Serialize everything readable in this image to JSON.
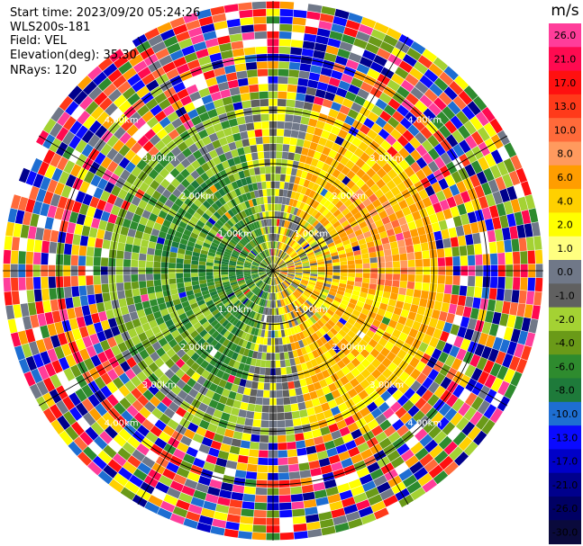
{
  "header": {
    "start_time": "Start time: 2023/09/20 05:24:26",
    "instrument": "WLS200s-181",
    "field": "Field: VEL",
    "elevation": "Elevation(deg): 35.30",
    "nrays": "NRays: 120"
  },
  "rings": {
    "labels": [
      "1.00km",
      "2.00km",
      "3.00km",
      "4.00km"
    ],
    "label_bearings_deg": [
      45,
      135,
      225,
      315
    ]
  },
  "colorbar": {
    "unit": "m/s",
    "ticks": [
      "26.0",
      "21.0",
      "17.0",
      "13.0",
      "10.0",
      "8.0",
      "6.0",
      "4.0",
      "2.0",
      "1.0",
      "0.0",
      "-1.0",
      "-2.0",
      "-4.0",
      "-6.0",
      "-8.0",
      "-10.0",
      "-13.0",
      "-17.0",
      "-21.0",
      "-26.0",
      "-30.0"
    ],
    "colors": [
      "#ff3d9a",
      "#ff0a50",
      "#ff1010",
      "#ff3a1a",
      "#ff6a3a",
      "#ff9a5e",
      "#ff9d00",
      "#ffd000",
      "#ffff00",
      "#ffff80",
      "#707888",
      "#606060",
      "#a4d233",
      "#6a9a18",
      "#2e8b2e",
      "#1e7a3a",
      "#1e6ed2",
      "#0a0aff",
      "#0000c8",
      "#00008c",
      "#000064",
      "#0a0a3c"
    ]
  }
}
